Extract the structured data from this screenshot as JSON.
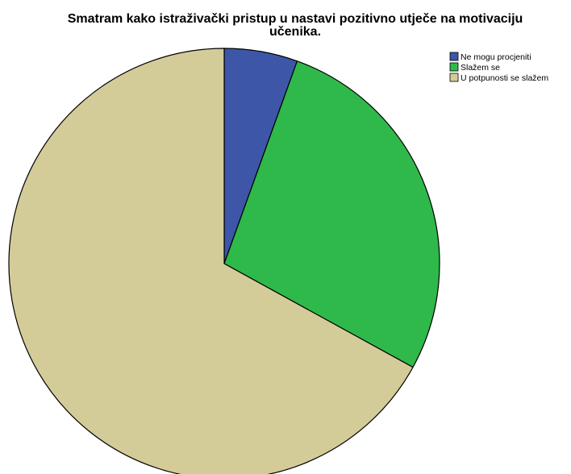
{
  "chart_data": {
    "type": "pie",
    "title_lines": [
      "Smatram kako istraživački pristup u nastavi pozitivno utječe na motivaciju",
      "učenika."
    ],
    "slices": [
      {
        "label": "Ne mogu procjeniti",
        "value": 5.5,
        "color": "#3d56a8"
      },
      {
        "label": "Slažem se",
        "value": 27.5,
        "color": "#2fb94a"
      },
      {
        "label": "U potpunosti se slažem",
        "value": 67.0,
        "color": "#d4cc98"
      }
    ],
    "start_angle_deg": 0,
    "direction": "clockwise",
    "legend_position": "top-right",
    "slice_border_color": "#000000"
  }
}
